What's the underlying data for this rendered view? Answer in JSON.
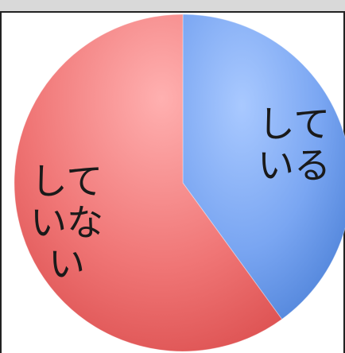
{
  "chart_data": {
    "type": "pie",
    "slices": [
      {
        "label": "している",
        "label_lines": [
          "して",
          "いる"
        ],
        "value": 40,
        "color": "#5b8fe6"
      },
      {
        "label": "していない",
        "label_lines": [
          "して",
          "いな",
          "い"
        ],
        "value": 60,
        "color": "#e85a5a"
      }
    ],
    "start_angle_deg": 0,
    "direction": "clockwise",
    "legend": "none",
    "title": ""
  }
}
